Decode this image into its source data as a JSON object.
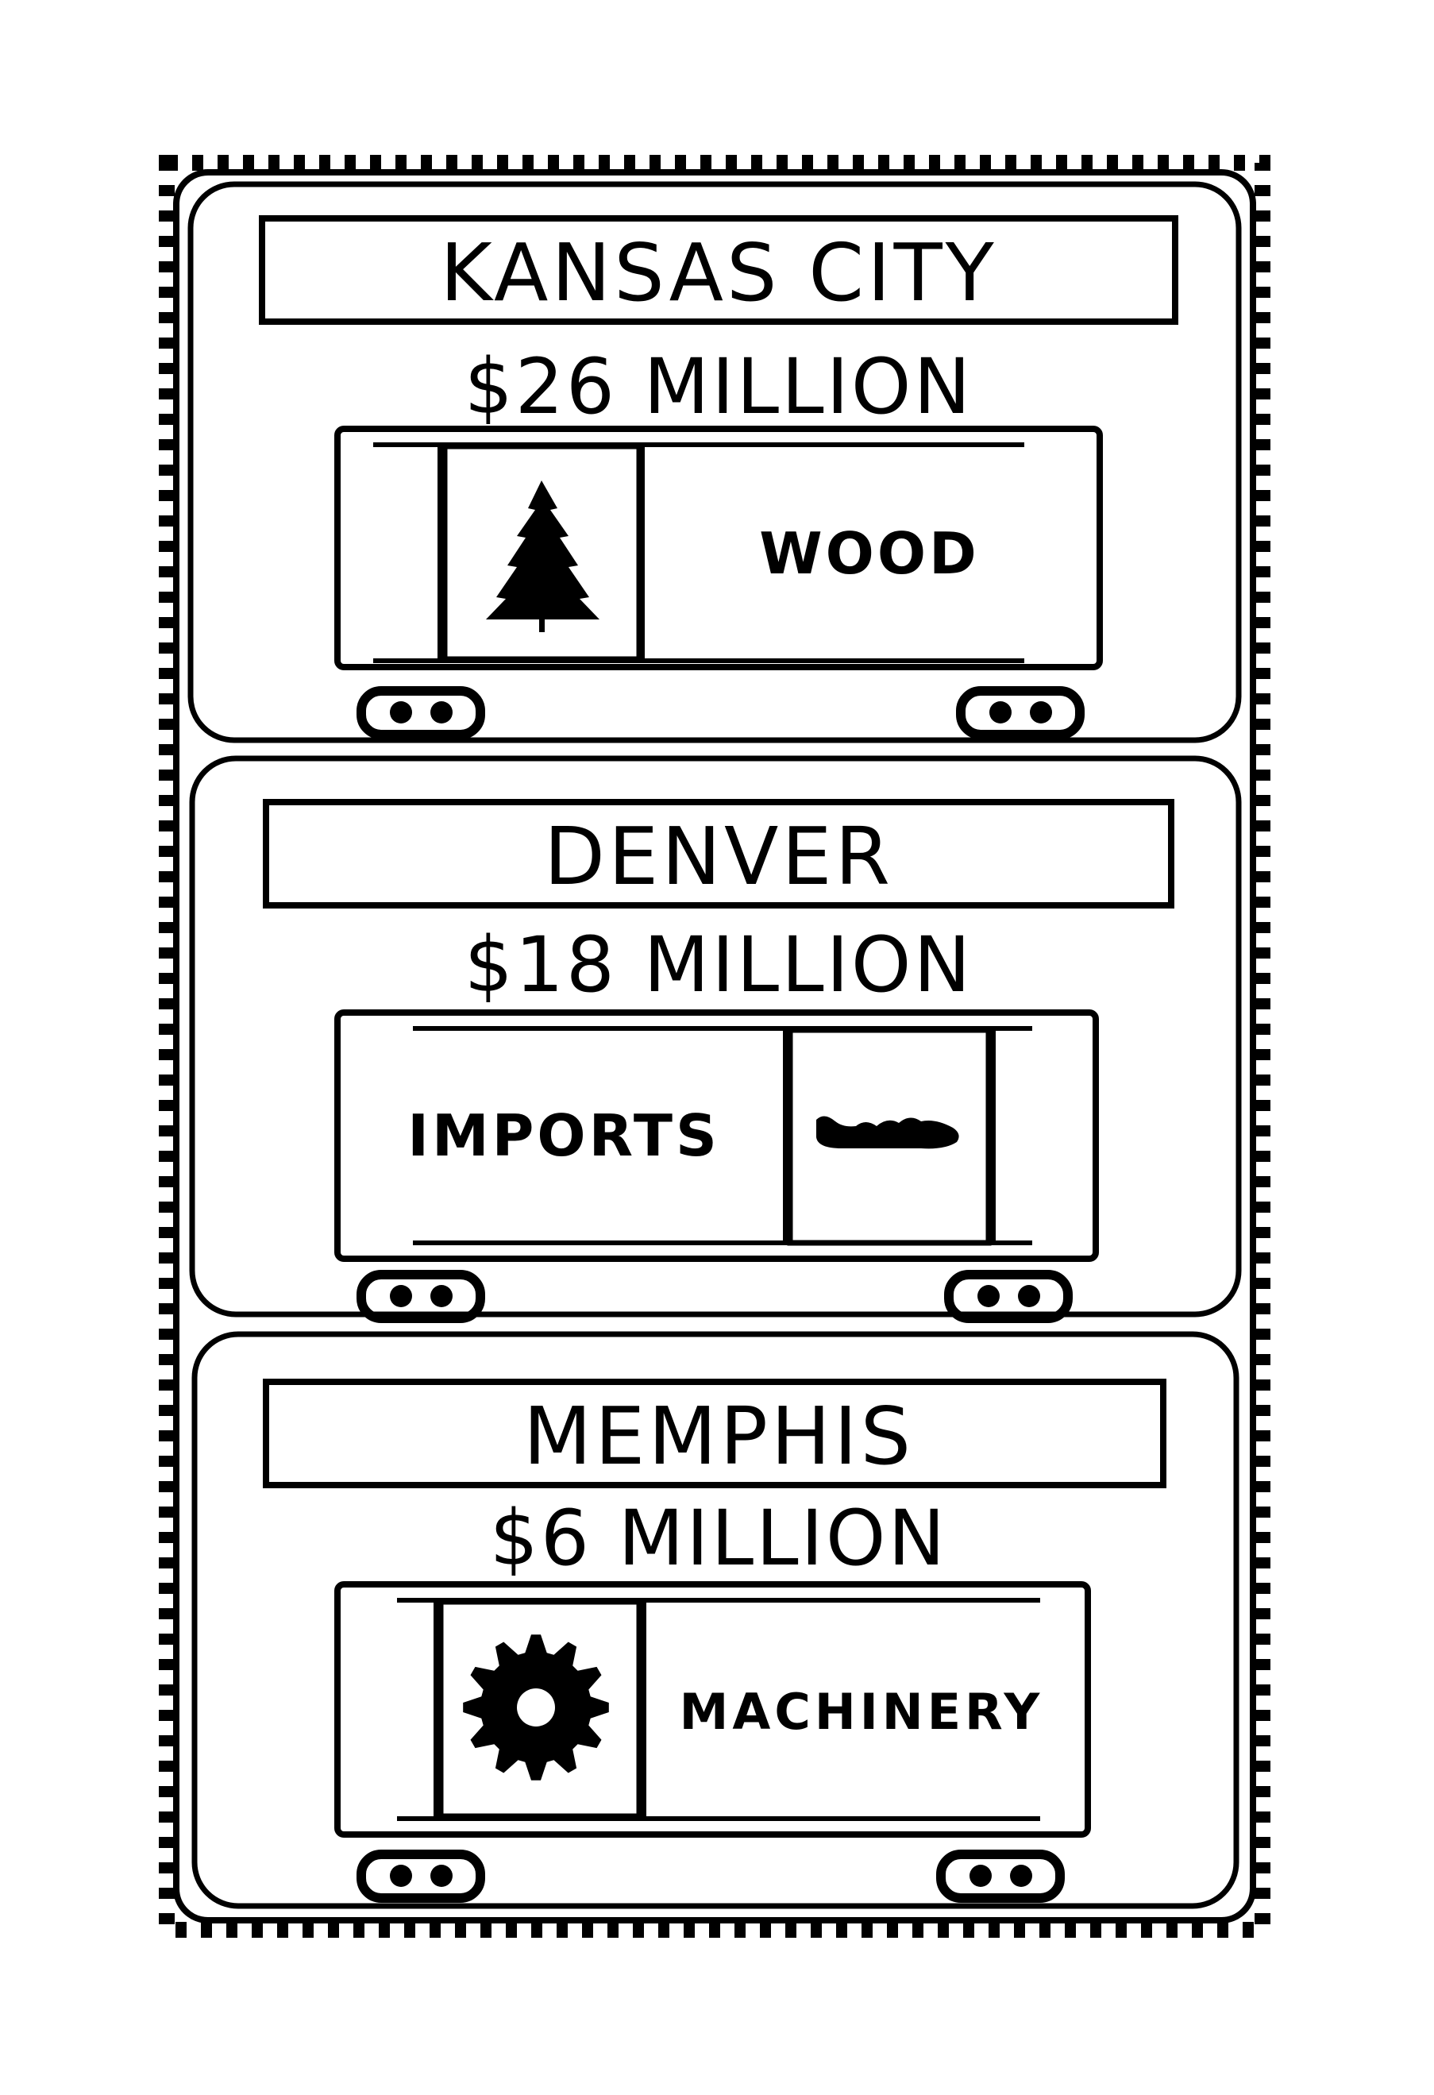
{
  "panels": [
    {
      "city": "KANSAS CITY",
      "amount": "$26 MILLION",
      "cargo": "WOOD",
      "icon": "pine-tree-icon",
      "icon_side": "left"
    },
    {
      "city": "DENVER",
      "amount": "$18 MILLION",
      "cargo": "IMPORTS",
      "icon": "shoe-icon",
      "icon_side": "right"
    },
    {
      "city": "MEMPHIS",
      "amount": "$6 MILLION",
      "cargo": "MACHINERY",
      "icon": "gear-icon",
      "icon_side": "left"
    }
  ],
  "colors": {
    "ink": "#000000",
    "paper": "#ffffff"
  }
}
